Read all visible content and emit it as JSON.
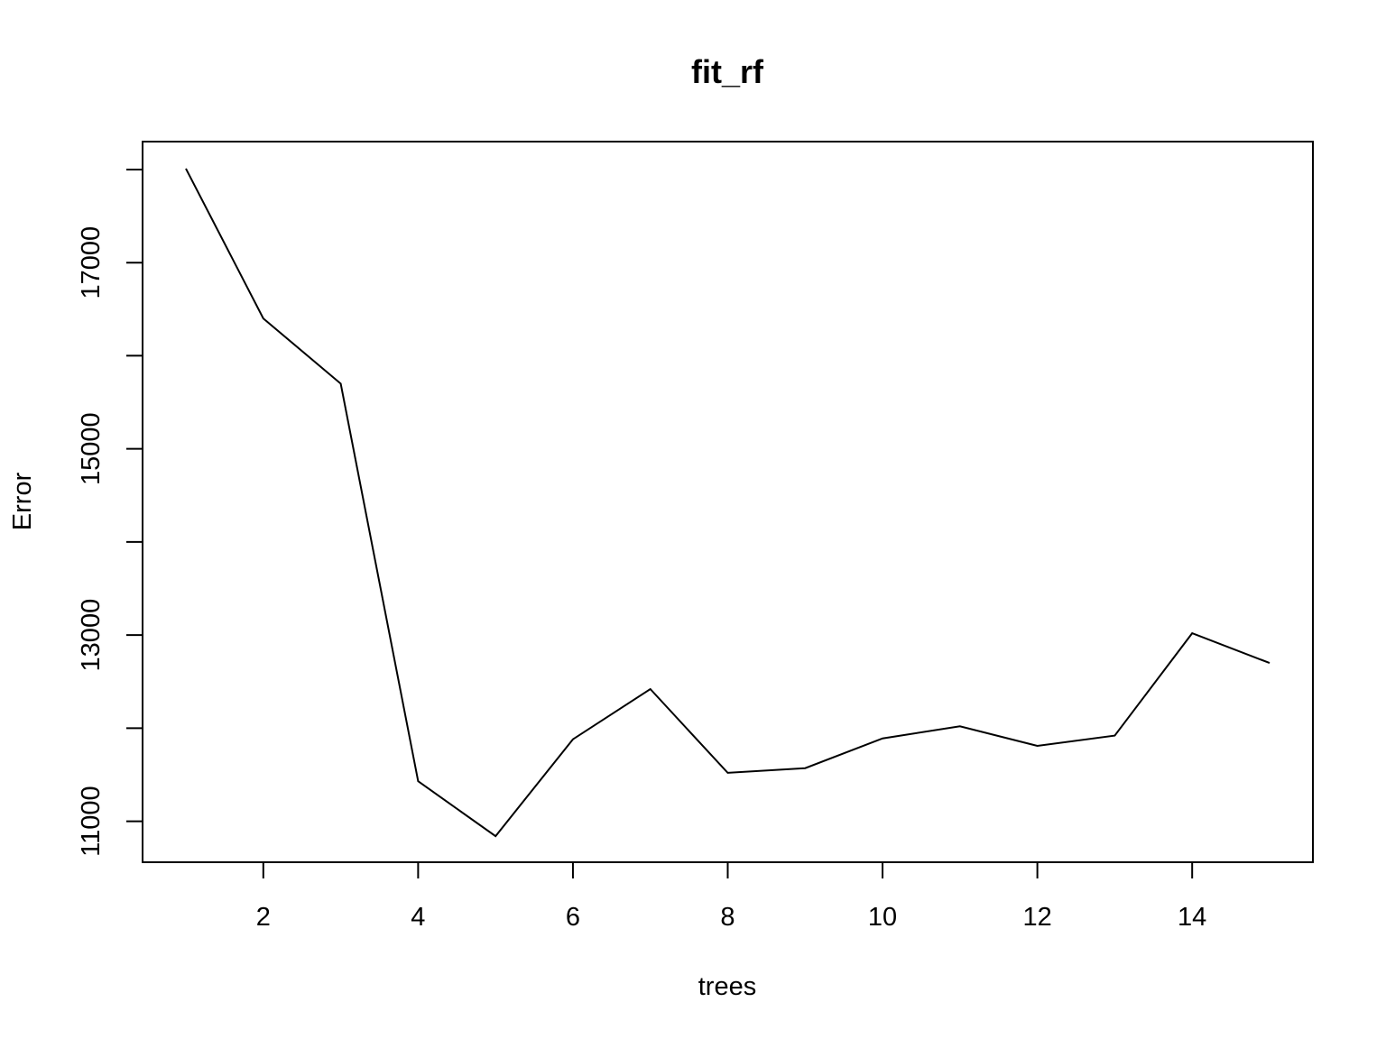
{
  "chart_data": {
    "type": "line",
    "title": "fit_rf",
    "xlabel": "trees",
    "ylabel": "Error",
    "x": [
      1,
      2,
      3,
      4,
      5,
      6,
      7,
      8,
      9,
      10,
      11,
      12,
      13,
      14,
      15
    ],
    "series": [
      {
        "values": [
          18010,
          16400,
          15700,
          11430,
          10840,
          11880,
          12420,
          11520,
          11570,
          11890,
          12020,
          11810,
          11920,
          13020,
          12700
        ],
        "color": "#000000"
      }
    ],
    "xlim": [
      0.44,
      15.56
    ],
    "ylim": [
      10560,
      18300
    ],
    "xticks": [
      2,
      4,
      6,
      8,
      10,
      12,
      14
    ],
    "yticks": [
      11000,
      12000,
      13000,
      14000,
      15000,
      16000,
      17000,
      18000
    ],
    "ytick_labels": [
      "11000",
      "",
      "13000",
      "",
      "15000",
      "",
      "17000",
      ""
    ],
    "grid": false,
    "legend": "none"
  }
}
